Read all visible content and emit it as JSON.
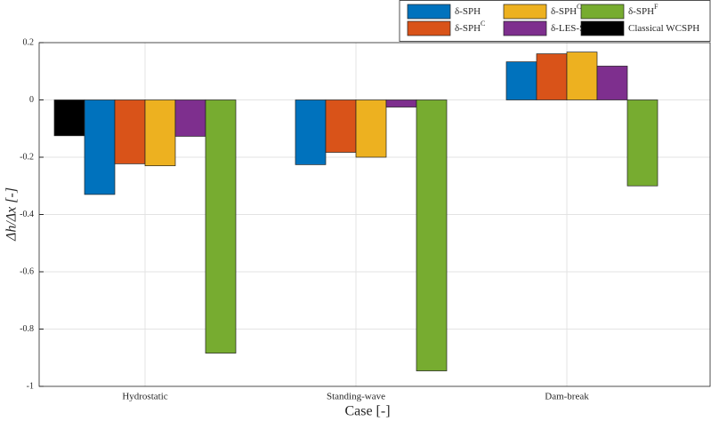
{
  "chart_data": {
    "type": "bar",
    "xlabel": "Case [-]",
    "ylabel": "Δh/Δx [-]",
    "categories": [
      "Hydrostatic",
      "Standing-wave",
      "Dam-break"
    ],
    "series": [
      {
        "name": "Classical WCSPH",
        "color": "#000000",
        "values": [
          -0.125,
          null,
          null
        ]
      },
      {
        "name": "δ-SPH",
        "color": "#0072bd",
        "values": [
          -0.33,
          -0.226,
          0.133
        ]
      },
      {
        "name": "δ-SPH",
        "name_sup": "C",
        "color": "#d95319",
        "values": [
          -0.223,
          -0.183,
          0.161
        ]
      },
      {
        "name": "δ-SPH",
        "name_sup": "C+",
        "color": "#edb120",
        "values": [
          -0.23,
          -0.2,
          0.167
        ]
      },
      {
        "name": "δ-LES-SPH",
        "color": "#7e2f8e",
        "values": [
          -0.127,
          -0.025,
          0.118
        ]
      },
      {
        "name": "δ-SPH",
        "name_sup": "F",
        "color": "#77ac30",
        "values": [
          -0.884,
          -0.946,
          -0.3
        ]
      }
    ],
    "ylim": [
      -1,
      0.2
    ],
    "yticks": [
      -1,
      -0.8,
      -0.6,
      -0.4,
      -0.2,
      0,
      0.2
    ],
    "grid": true
  }
}
